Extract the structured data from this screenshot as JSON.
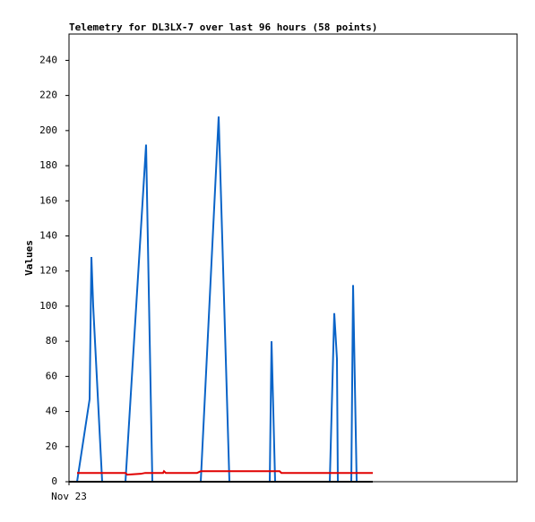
{
  "chart_data": {
    "type": "line",
    "title": "Telemetry for DL3LX-7 over last 96 hours (58 points)",
    "y_label": "Values",
    "xlim": [
      0,
      100
    ],
    "xticks": [
      {
        "value": 0,
        "label": "Nov 23"
      }
    ],
    "ylim": [
      0,
      255
    ],
    "yticks": [
      0,
      20,
      40,
      60,
      80,
      100,
      120,
      140,
      160,
      180,
      200,
      220,
      240
    ],
    "grid": false,
    "series": [
      {
        "color": "#0a64c8",
        "x": [
          1.8,
          4.6,
          5,
          5.4,
          7.4,
          12.6,
          17.2,
          18.6,
          29.4,
          33.4,
          35.8,
          44.8,
          45.2,
          46,
          58.2,
          59.2,
          59.8,
          60,
          63,
          63.4,
          64.2,
          67.8
        ],
        "values": [
          0,
          47,
          128,
          100,
          0,
          0,
          192,
          0,
          0,
          208,
          0,
          0,
          80,
          0,
          0,
          96,
          70,
          0,
          0,
          112,
          0,
          0
        ]
      },
      {
        "color": "#e00000",
        "x": [
          1.8,
          12.6,
          13,
          16,
          17,
          21,
          21.2,
          21.6,
          28.6,
          29.4,
          47,
          47.4,
          67.8
        ],
        "values": [
          5,
          5,
          4,
          4.5,
          5,
          5,
          6,
          5,
          5,
          6,
          6,
          5,
          5
        ]
      },
      {
        "color": "#000000",
        "x": [
          0,
          67.8
        ],
        "values": [
          0,
          0
        ]
      }
    ]
  }
}
